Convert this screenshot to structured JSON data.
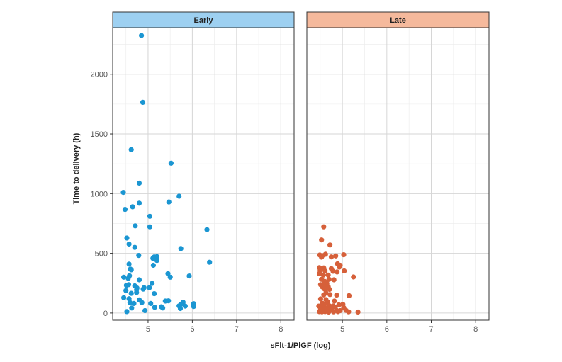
{
  "chart_data": {
    "type": "scatter",
    "xlabel": "sFlt-1/PlGF (log)",
    "ylabel": "Time to delivery (h)",
    "xlim": [
      4.2,
      8.3
    ],
    "ylim": [
      -60,
      2390
    ],
    "x_ticks": [
      5,
      6,
      7,
      8
    ],
    "y_ticks": [
      0,
      500,
      1000,
      1500,
      2000
    ],
    "grid": true,
    "legend": "none",
    "panels": [
      {
        "label": "Early",
        "strip_color": "#9dd0f1",
        "point_color": "#1b96d2",
        "points": [
          [
            4.85,
            2325
          ],
          [
            4.88,
            1765
          ],
          [
            4.62,
            1368
          ],
          [
            5.52,
            1255
          ],
          [
            4.8,
            1088
          ],
          [
            4.44,
            1010
          ],
          [
            5.7,
            978
          ],
          [
            5.47,
            930
          ],
          [
            4.8,
            920
          ],
          [
            4.65,
            890
          ],
          [
            4.48,
            868
          ],
          [
            5.04,
            810
          ],
          [
            4.71,
            730
          ],
          [
            5.04,
            722
          ],
          [
            6.33,
            698
          ],
          [
            4.52,
            628
          ],
          [
            4.57,
            578
          ],
          [
            4.7,
            550
          ],
          [
            5.74,
            540
          ],
          [
            4.79,
            482
          ],
          [
            5.14,
            470
          ],
          [
            5.2,
            472
          ],
          [
            5.11,
            458
          ],
          [
            5.2,
            440
          ],
          [
            6.39,
            425
          ],
          [
            4.57,
            410
          ],
          [
            5.12,
            400
          ],
          [
            4.6,
            368
          ],
          [
            4.62,
            362
          ],
          [
            5.45,
            330
          ],
          [
            4.45,
            300
          ],
          [
            4.58,
            312
          ],
          [
            5.5,
            300
          ],
          [
            5.93,
            310
          ],
          [
            4.55,
            290
          ],
          [
            4.8,
            278
          ],
          [
            4.51,
            232
          ],
          [
            4.56,
            238
          ],
          [
            4.7,
            228
          ],
          [
            5.09,
            248
          ],
          [
            4.91,
            212
          ],
          [
            4.89,
            200
          ],
          [
            4.75,
            210
          ],
          [
            5.03,
            212
          ],
          [
            4.74,
            195
          ],
          [
            4.5,
            188
          ],
          [
            4.62,
            165
          ],
          [
            4.74,
            172
          ],
          [
            5.14,
            162
          ],
          [
            4.45,
            128
          ],
          [
            4.57,
            120
          ],
          [
            4.8,
            110
          ],
          [
            5.39,
            100
          ],
          [
            5.46,
            102
          ],
          [
            4.59,
            88
          ],
          [
            4.68,
            80
          ],
          [
            4.86,
            88
          ],
          [
            5.06,
            80
          ],
          [
            5.79,
            90
          ],
          [
            5.74,
            72
          ],
          [
            6.03,
            78
          ],
          [
            5.7,
            60
          ],
          [
            5.84,
            58
          ],
          [
            5.3,
            52
          ],
          [
            5.15,
            48
          ],
          [
            6.03,
            55
          ],
          [
            4.63,
            42
          ],
          [
            5.33,
            42
          ],
          [
            5.73,
            38
          ],
          [
            4.93,
            20
          ],
          [
            4.52,
            12
          ]
        ]
      },
      {
        "label": "Late",
        "strip_color": "#f5b99c",
        "point_color": "#d6603a",
        "points": [
          [
            4.58,
            722
          ],
          [
            4.53,
            612
          ],
          [
            4.72,
            570
          ],
          [
            4.49,
            486
          ],
          [
            4.55,
            480
          ],
          [
            4.62,
            492
          ],
          [
            4.75,
            470
          ],
          [
            4.85,
            478
          ],
          [
            5.03,
            488
          ],
          [
            4.53,
            468
          ],
          [
            4.89,
            412
          ],
          [
            4.95,
            400
          ],
          [
            4.93,
            385
          ],
          [
            4.48,
            380
          ],
          [
            4.52,
            375
          ],
          [
            4.58,
            378
          ],
          [
            4.75,
            372
          ],
          [
            4.5,
            355
          ],
          [
            4.61,
            352
          ],
          [
            4.79,
            350
          ],
          [
            4.88,
            344
          ],
          [
            5.04,
            352
          ],
          [
            4.48,
            330
          ],
          [
            4.68,
            318
          ],
          [
            4.57,
            318
          ],
          [
            5.25,
            302
          ],
          [
            4.53,
            282
          ],
          [
            4.7,
            282
          ],
          [
            4.81,
            278
          ],
          [
            4.6,
            265
          ],
          [
            4.65,
            248
          ],
          [
            4.51,
            238
          ],
          [
            4.59,
            230
          ],
          [
            4.55,
            218
          ],
          [
            4.68,
            220
          ],
          [
            4.6,
            200
          ],
          [
            4.71,
            198
          ],
          [
            4.63,
            168
          ],
          [
            4.58,
            152
          ],
          [
            4.72,
            155
          ],
          [
            4.87,
            150
          ],
          [
            5.15,
            145
          ],
          [
            4.51,
            118
          ],
          [
            4.63,
            112
          ],
          [
            4.82,
            100
          ],
          [
            4.67,
            92
          ],
          [
            4.55,
            82
          ],
          [
            4.59,
            72
          ],
          [
            4.7,
            62
          ],
          [
            4.79,
            60
          ],
          [
            4.92,
            68
          ],
          [
            5.01,
            72
          ],
          [
            4.47,
            58
          ],
          [
            4.53,
            48
          ],
          [
            4.63,
            42
          ],
          [
            4.73,
            40
          ],
          [
            4.84,
            50
          ],
          [
            5.03,
            45
          ],
          [
            4.51,
            32
          ],
          [
            4.57,
            28
          ],
          [
            4.65,
            25
          ],
          [
            4.75,
            28
          ],
          [
            4.87,
            22
          ],
          [
            4.95,
            20
          ],
          [
            5.08,
            22
          ],
          [
            4.48,
            12
          ],
          [
            4.54,
            10
          ],
          [
            4.61,
            12
          ],
          [
            4.69,
            8
          ],
          [
            4.8,
            10
          ],
          [
            4.9,
            12
          ],
          [
            5.14,
            10
          ],
          [
            5.35,
            8
          ]
        ]
      }
    ]
  }
}
